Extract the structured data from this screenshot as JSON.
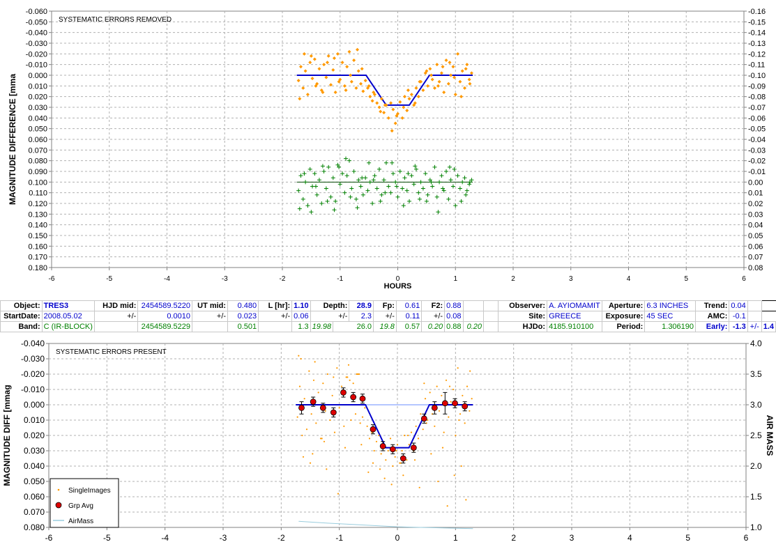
{
  "chart_data": [
    {
      "type": "scatter",
      "title": "SYSTEMATIC ERRORS REMOVED",
      "xlabel": "HOURS",
      "ylabel": "MAGNITUDE DIFFERENCE [mma",
      "xlim": [
        -6,
        6
      ],
      "ylim": [
        -0.06,
        0.18
      ],
      "y_inverted": true,
      "y2lim": [
        -0.16,
        0.08
      ],
      "y2_inverted": true,
      "x_ticks": [
        "-6",
        "-5",
        "-4",
        "-3",
        "-2",
        "-1",
        "0",
        "1",
        "2",
        "3",
        "4",
        "5",
        "6"
      ],
      "y_ticks": [
        "-0.060",
        "-0.050",
        "-0.040",
        "-0.030",
        "-0.020",
        "-0.010",
        "0.000",
        "0.010",
        "0.020",
        "0.030",
        "0.040",
        "0.050",
        "0.060",
        "0.070",
        "0.080",
        "0.090",
        "0.100",
        "0.110",
        "0.120",
        "0.130",
        "0.140",
        "0.150",
        "0.160",
        "0.170",
        "0.180"
      ],
      "y2_ticks": [
        "-0.16",
        "-0.15",
        "-0.14",
        "-0.13",
        "-0.12",
        "-0.11",
        "-0.10",
        "-0.09",
        "-0.08",
        "-0.07",
        "-0.06",
        "-0.05",
        "-0.04",
        "-0.03",
        "-0.02",
        "-0.01",
        "0.00",
        "0.01",
        "0.02",
        "0.03",
        "0.04",
        "0.05",
        "0.06",
        "0.07",
        "0.08"
      ],
      "grid": true,
      "series": [
        {
          "role": "model",
          "color": "#0000cc",
          "x": [
            -1.75,
            -0.55,
            -0.2,
            0.2,
            0.55,
            1.3
          ],
          "y": [
            0.0,
            0.0,
            0.028,
            0.028,
            0.0,
            0.0
          ]
        },
        {
          "role": "points",
          "color": "#ff9900",
          "marker": "diamond",
          "x": [
            -1.72,
            -1.68,
            -1.64,
            -1.6,
            -1.56,
            -1.52,
            -1.48,
            -1.44,
            -1.4,
            -1.36,
            -1.32,
            -1.28,
            -1.24,
            -1.2,
            -1.16,
            -1.12,
            -1.08,
            -1.04,
            -1.0,
            -0.96,
            -0.92,
            -0.88,
            -0.84,
            -0.8,
            -0.76,
            -0.72,
            -0.68,
            -0.64,
            -0.6,
            -0.56,
            -0.52,
            -0.48,
            -0.44,
            -0.4,
            -0.36,
            -0.32,
            -0.28,
            -0.24,
            -0.2,
            -0.16,
            -0.12,
            -0.08,
            -0.04,
            0.0,
            0.04,
            0.08,
            0.12,
            0.16,
            0.2,
            0.24,
            0.28,
            0.32,
            0.36,
            0.4,
            0.44,
            0.48,
            0.52,
            0.56,
            0.6,
            0.64,
            0.68,
            0.72,
            0.76,
            0.8,
            0.84,
            0.88,
            0.92,
            0.96,
            1.0,
            1.04,
            1.08,
            1.12,
            1.16,
            1.2,
            1.24,
            1.28,
            -1.7,
            -1.5,
            -1.3,
            -1.1,
            -0.9,
            -0.7,
            -0.5,
            -0.3,
            -0.1,
            0.1,
            0.3,
            0.5,
            0.7,
            0.9,
            1.1,
            1.25,
            -1.62,
            -1.42,
            -1.22,
            -1.02,
            -0.82,
            -0.62,
            -0.42,
            -0.22,
            -0.02,
            0.18,
            0.38,
            0.58,
            0.78,
            0.98,
            1.18
          ],
          "y": [
            0.005,
            -0.008,
            0.012,
            -0.004,
            0.018,
            -0.012,
            0.003,
            -0.015,
            0.008,
            -0.006,
            0.014,
            -0.01,
            0.002,
            -0.018,
            0.009,
            -0.005,
            0.016,
            -0.02,
            0.004,
            -0.012,
            0.01,
            -0.008,
            -0.022,
            0.006,
            -0.014,
            0.012,
            -0.004,
            0.008,
            0.015,
            0.005,
            0.012,
            0.02,
            0.024,
            0.018,
            0.026,
            0.03,
            0.022,
            0.035,
            0.028,
            0.04,
            0.026,
            0.032,
            0.045,
            0.036,
            0.025,
            0.04,
            0.02,
            0.033,
            0.022,
            0.018,
            0.028,
            0.012,
            0.02,
            0.006,
            0.014,
            -0.002,
            0.01,
            -0.006,
            0.004,
            0.012,
            -0.01,
            0.006,
            -0.002,
            0.016,
            -0.014,
            0.008,
            0.0,
            -0.008,
            0.018,
            -0.02,
            0.006,
            -0.004,
            0.012,
            -0.01,
            0.004,
            -0.002,
            0.022,
            -0.018,
            0.016,
            -0.016,
            0.014,
            -0.024,
            0.01,
            0.034,
            0.052,
            0.03,
            0.026,
            -0.004,
            0.01,
            -0.012,
            0.02,
            0.008,
            -0.02,
            0.01,
            -0.012,
            0.006,
            0.0,
            -0.006,
            0.016,
            0.028,
            0.038,
            0.014,
            0.006,
            0.0,
            -0.008,
            0.002,
            -0.006
          ]
        },
        {
          "role": "residual-model",
          "color": "#004400",
          "x": [
            -1.75,
            1.3
          ],
          "y": [
            0.1,
            0.1
          ]
        },
        {
          "role": "residual-points",
          "color": "#008000",
          "marker": "plus",
          "x": [
            -1.72,
            -1.68,
            -1.64,
            -1.6,
            -1.56,
            -1.52,
            -1.48,
            -1.44,
            -1.4,
            -1.36,
            -1.32,
            -1.28,
            -1.24,
            -1.2,
            -1.16,
            -1.12,
            -1.08,
            -1.04,
            -1.0,
            -0.96,
            -0.92,
            -0.88,
            -0.84,
            -0.8,
            -0.76,
            -0.72,
            -0.68,
            -0.64,
            -0.6,
            -0.56,
            -0.52,
            -0.48,
            -0.44,
            -0.4,
            -0.36,
            -0.32,
            -0.28,
            -0.24,
            -0.2,
            -0.16,
            -0.12,
            -0.08,
            -0.04,
            0.0,
            0.04,
            0.08,
            0.12,
            0.16,
            0.2,
            0.24,
            0.28,
            0.32,
            0.36,
            0.4,
            0.44,
            0.48,
            0.52,
            0.56,
            0.6,
            0.64,
            0.68,
            0.72,
            0.76,
            0.8,
            0.84,
            0.88,
            0.92,
            0.96,
            1.0,
            1.04,
            1.08,
            1.12,
            1.16,
            1.2,
            1.24,
            1.28,
            -1.7,
            -1.5,
            -1.3,
            -1.1,
            -0.9,
            -0.7,
            -0.5,
            -0.3,
            -0.1,
            0.1,
            0.3,
            0.5,
            0.7,
            0.9,
            1.1,
            1.25,
            -1.62,
            -1.42,
            -1.22,
            -1.02,
            -0.82,
            -0.62,
            -0.42,
            -0.22,
            -0.02,
            0.18,
            0.38,
            0.58,
            0.78,
            0.98,
            1.18
          ],
          "y": [
            0.108,
            0.094,
            0.116,
            0.1,
            0.122,
            0.088,
            0.104,
            0.092,
            0.112,
            0.098,
            0.12,
            0.09,
            0.106,
            0.086,
            0.114,
            0.096,
            0.118,
            0.084,
            0.102,
            0.092,
            0.11,
            0.094,
            0.08,
            0.106,
            0.09,
            0.116,
            0.098,
            0.104,
            0.112,
            0.096,
            0.108,
            0.1,
            0.12,
            0.094,
            0.106,
            0.088,
            0.112,
            0.098,
            0.082,
            0.104,
            0.11,
            0.092,
            0.1,
            0.114,
            0.09,
            0.106,
            0.096,
            0.108,
            0.118,
            0.094,
            0.102,
            0.088,
            0.11,
            0.1,
            0.106,
            0.092,
            0.112,
            0.098,
            0.104,
            0.086,
            0.114,
            0.1,
            0.094,
            0.108,
            0.09,
            0.116,
            0.098,
            0.104,
            0.122,
            0.094,
            0.106,
            0.1,
            0.096,
            0.108,
            0.102,
            0.098,
            0.125,
            0.128,
            0.085,
            0.126,
            0.078,
            0.124,
            0.082,
            0.118,
            0.082,
            0.122,
            0.085,
            0.118,
            0.128,
            0.086,
            0.118,
            0.1,
            0.092,
            0.104,
            0.118,
            0.086,
            0.114,
            0.096,
            0.098,
            0.11,
            0.104,
            0.092,
            0.116,
            0.1,
            0.106,
            0.088,
            0.112
          ]
        }
      ]
    },
    {
      "type": "scatter",
      "title": "SYSTEMATIC ERRORS PRESENT",
      "ylabel": "MAGNITUDE DIFF [mmag",
      "y2label": "AIR MASS",
      "xlim": [
        -6,
        6
      ],
      "ylim": [
        -0.04,
        0.08
      ],
      "y_inverted": true,
      "y2lim": [
        1.0,
        4.0
      ],
      "x_ticks": [
        "-6",
        "-5",
        "-4",
        "-3",
        "-2",
        "-1",
        "0",
        "1",
        "2",
        "3",
        "4",
        "5",
        "6"
      ],
      "y_ticks": [
        "-0.040",
        "-0.030",
        "-0.020",
        "-0.010",
        "0.000",
        "0.010",
        "0.020",
        "0.030",
        "0.040",
        "0.050",
        "0.060",
        "0.070",
        "0.080"
      ],
      "y2_ticks": [
        "4.0",
        "3.5",
        "3.0",
        "2.5",
        "2.0",
        "1.5",
        "1.0"
      ],
      "grid": true,
      "legend_position": "bottom-left",
      "legend": [
        "SingleImages",
        "Grp Avg",
        "AirMass"
      ],
      "series": [
        {
          "role": "flat-line",
          "color": "#6a8cff",
          "x": [
            -1.75,
            1.3
          ],
          "y": [
            0.0,
            0.0
          ]
        },
        {
          "role": "model",
          "color": "#0000cc",
          "x": [
            -1.75,
            -0.55,
            -0.2,
            0.2,
            0.55,
            1.3
          ],
          "y": [
            0.0,
            0.0,
            0.028,
            0.028,
            0.0,
            0.0
          ]
        },
        {
          "name": "SingleImages",
          "color": "#ff9900",
          "marker": "dot",
          "x": [
            -1.72,
            -1.68,
            -1.64,
            -1.6,
            -1.56,
            -1.52,
            -1.48,
            -1.44,
            -1.4,
            -1.36,
            -1.32,
            -1.28,
            -1.24,
            -1.2,
            -1.16,
            -1.12,
            -1.08,
            -1.04,
            -1.0,
            -0.96,
            -0.92,
            -0.88,
            -0.84,
            -0.8,
            -0.76,
            -0.72,
            -0.68,
            -0.64,
            -0.6,
            -0.56,
            -0.52,
            -0.48,
            -0.44,
            -0.4,
            -0.36,
            -0.32,
            -0.28,
            -0.24,
            -0.2,
            -0.16,
            -0.12,
            -0.08,
            -0.04,
            0.0,
            0.04,
            0.08,
            0.12,
            0.16,
            0.2,
            0.24,
            0.28,
            0.32,
            0.36,
            0.4,
            0.44,
            0.48,
            0.52,
            0.56,
            0.6,
            0.64,
            0.68,
            0.72,
            0.76,
            0.8,
            0.84,
            0.88,
            0.92,
            0.96,
            1.0,
            1.04,
            1.08,
            1.12,
            1.16,
            1.2,
            1.24,
            1.28,
            -1.7,
            -1.5,
            -1.3,
            -1.1,
            -0.9,
            -0.7,
            -0.5,
            -0.3,
            -0.1,
            0.1,
            0.3,
            0.5,
            0.7,
            0.9,
            1.1,
            1.25,
            -1.62,
            -1.42,
            -1.22,
            -1.02,
            -0.82,
            -0.62,
            -0.42,
            -0.22,
            -0.02,
            0.18,
            0.38,
            0.58,
            0.78,
            0.98,
            1.18,
            -1.66,
            -1.46,
            -1.26,
            -0.86,
            -0.66,
            0.06,
            0.46,
            0.86,
            1.06
          ],
          "y": [
            0.008,
            -0.012,
            0.02,
            -0.004,
            0.016,
            -0.022,
            0.006,
            -0.016,
            0.012,
            -0.008,
            0.022,
            -0.014,
            0.004,
            -0.02,
            0.01,
            -0.006,
            0.018,
            -0.024,
            0.002,
            -0.012,
            0.014,
            -0.018,
            -0.026,
            0.01,
            -0.014,
            0.006,
            -0.02,
            0.012,
            0.008,
            0.002,
            0.014,
            0.022,
            0.018,
            0.03,
            0.024,
            0.02,
            0.032,
            0.028,
            0.036,
            0.03,
            0.022,
            0.04,
            0.034,
            0.026,
            0.038,
            0.03,
            0.02,
            0.036,
            0.026,
            0.018,
            0.03,
            0.014,
            0.022,
            0.006,
            0.016,
            -0.004,
            0.01,
            -0.008,
            0.006,
            0.014,
            -0.012,
            0.004,
            -0.006,
            0.018,
            -0.016,
            0.008,
            -0.002,
            -0.01,
            0.02,
            -0.024,
            0.006,
            -0.006,
            0.012,
            -0.012,
            0.004,
            -0.004,
            -0.032,
            0.038,
            0.022,
            -0.018,
            0.028,
            -0.02,
            0.044,
            0.042,
            0.052,
            0.046,
            0.036,
            0.012,
            0.05,
            -0.012,
            0.04,
            -0.022,
            0.034,
            -0.028,
            0.042,
            0.058,
            -0.016,
            0.026,
            0.038,
            0.048,
            0.03,
            0.02,
            0.054,
            0.032,
            0.028,
            0.046,
            0.062,
            -0.03,
            0.032,
            0.024,
            -0.018,
            -0.02,
            0.038,
            -0.014,
            0.066,
            0.01
          ]
        },
        {
          "name": "Grp Avg",
          "color": "#dd0000",
          "marker": "circle-errorbar",
          "x": [
            -1.65,
            -1.45,
            -1.28,
            -1.1,
            -0.93,
            -0.76,
            -0.6,
            -0.42,
            -0.25,
            -0.08,
            0.1,
            0.28,
            0.46,
            0.64,
            0.82,
            0.99,
            1.16
          ],
          "y": [
            0.002,
            -0.002,
            0.002,
            0.005,
            -0.008,
            -0.005,
            -0.004,
            0.016,
            0.027,
            0.029,
            0.035,
            0.028,
            0.009,
            0.002,
            -0.001,
            -0.001,
            0.001
          ],
          "err": [
            0.004,
            0.003,
            0.003,
            0.003,
            0.003,
            0.003,
            0.003,
            0.003,
            0.003,
            0.003,
            0.003,
            0.003,
            0.003,
            0.004,
            0.007,
            0.003,
            0.003
          ]
        },
        {
          "name": "AirMass",
          "color": "#99ccdd",
          "axis": "right",
          "x": [
            -1.7,
            -1.2,
            -0.8,
            -0.4,
            0.0,
            0.4,
            1.3
          ],
          "y": [
            1.1,
            1.07,
            1.05,
            1.03,
            1.01,
            1.0,
            0.98
          ]
        }
      ]
    }
  ],
  "info_table": {
    "row1": {
      "object_label": "Object:",
      "object_value": "TRES3",
      "hjd_mid_label": "HJD mid:",
      "hjd_mid_value": "2454589.5220",
      "ut_mid_label": "UT mid:",
      "ut_mid_value": "0.480",
      "l_hr_label": "L [hr]:",
      "l_hr_value": "1.10",
      "depth_label": "Depth:",
      "depth_value": "28.9",
      "fp_label": "Fp:",
      "fp_value": "0.61",
      "f2_label": "F2:",
      "f2_value": "0.88",
      "observer_label": "Observer:",
      "observer_value": "A. AYIOMAMIT",
      "aperture_label": "Aperture:",
      "aperture_value": "6.3 INCHES",
      "trend_label": "Trend:",
      "trend_value": "0.04"
    },
    "row2": {
      "startdate_label": "StartDate:",
      "startdate_value": "2008.05.02",
      "pm1": "+/-",
      "hjd_err": "0.0010",
      "pm2": "+/-",
      "ut_err": "0.023",
      "pm3": "+/-",
      "l_err": "0.06",
      "pm4": "+/-",
      "depth_err": "2.3",
      "pm5": "+/-",
      "fp_err": "0.11",
      "pm6": "+/-",
      "f2_err": "0.08",
      "site_label": "Site:",
      "site_value": "GREECE",
      "exposure_label": "Exposure:",
      "exposure_value": "45 SEC",
      "amc_label": "AMC:",
      "amc_value": "-0.1"
    },
    "row3": {
      "band_label": "Band:",
      "band_value": "C (IR-BLOCK)",
      "hjd_alt": "2454589.5229",
      "ut_alt": "0.501",
      "l_alt": "1.3",
      "l_alt2": "19.98",
      "depth_alt": "26.0",
      "depth_alt2": "19.8",
      "fp_alt": "0.57",
      "fp_alt2": "0.20",
      "f2_alt": "0.88",
      "f2_alt2": "0.20",
      "hjdo_label": "HJDo:",
      "hjdo_value": "4185.910100",
      "period_label": "Period:",
      "period_value": "1.306190",
      "early_label": "Early:",
      "early_value": "-1.3",
      "pm7": "+/-",
      "early_err": "1.4"
    }
  }
}
